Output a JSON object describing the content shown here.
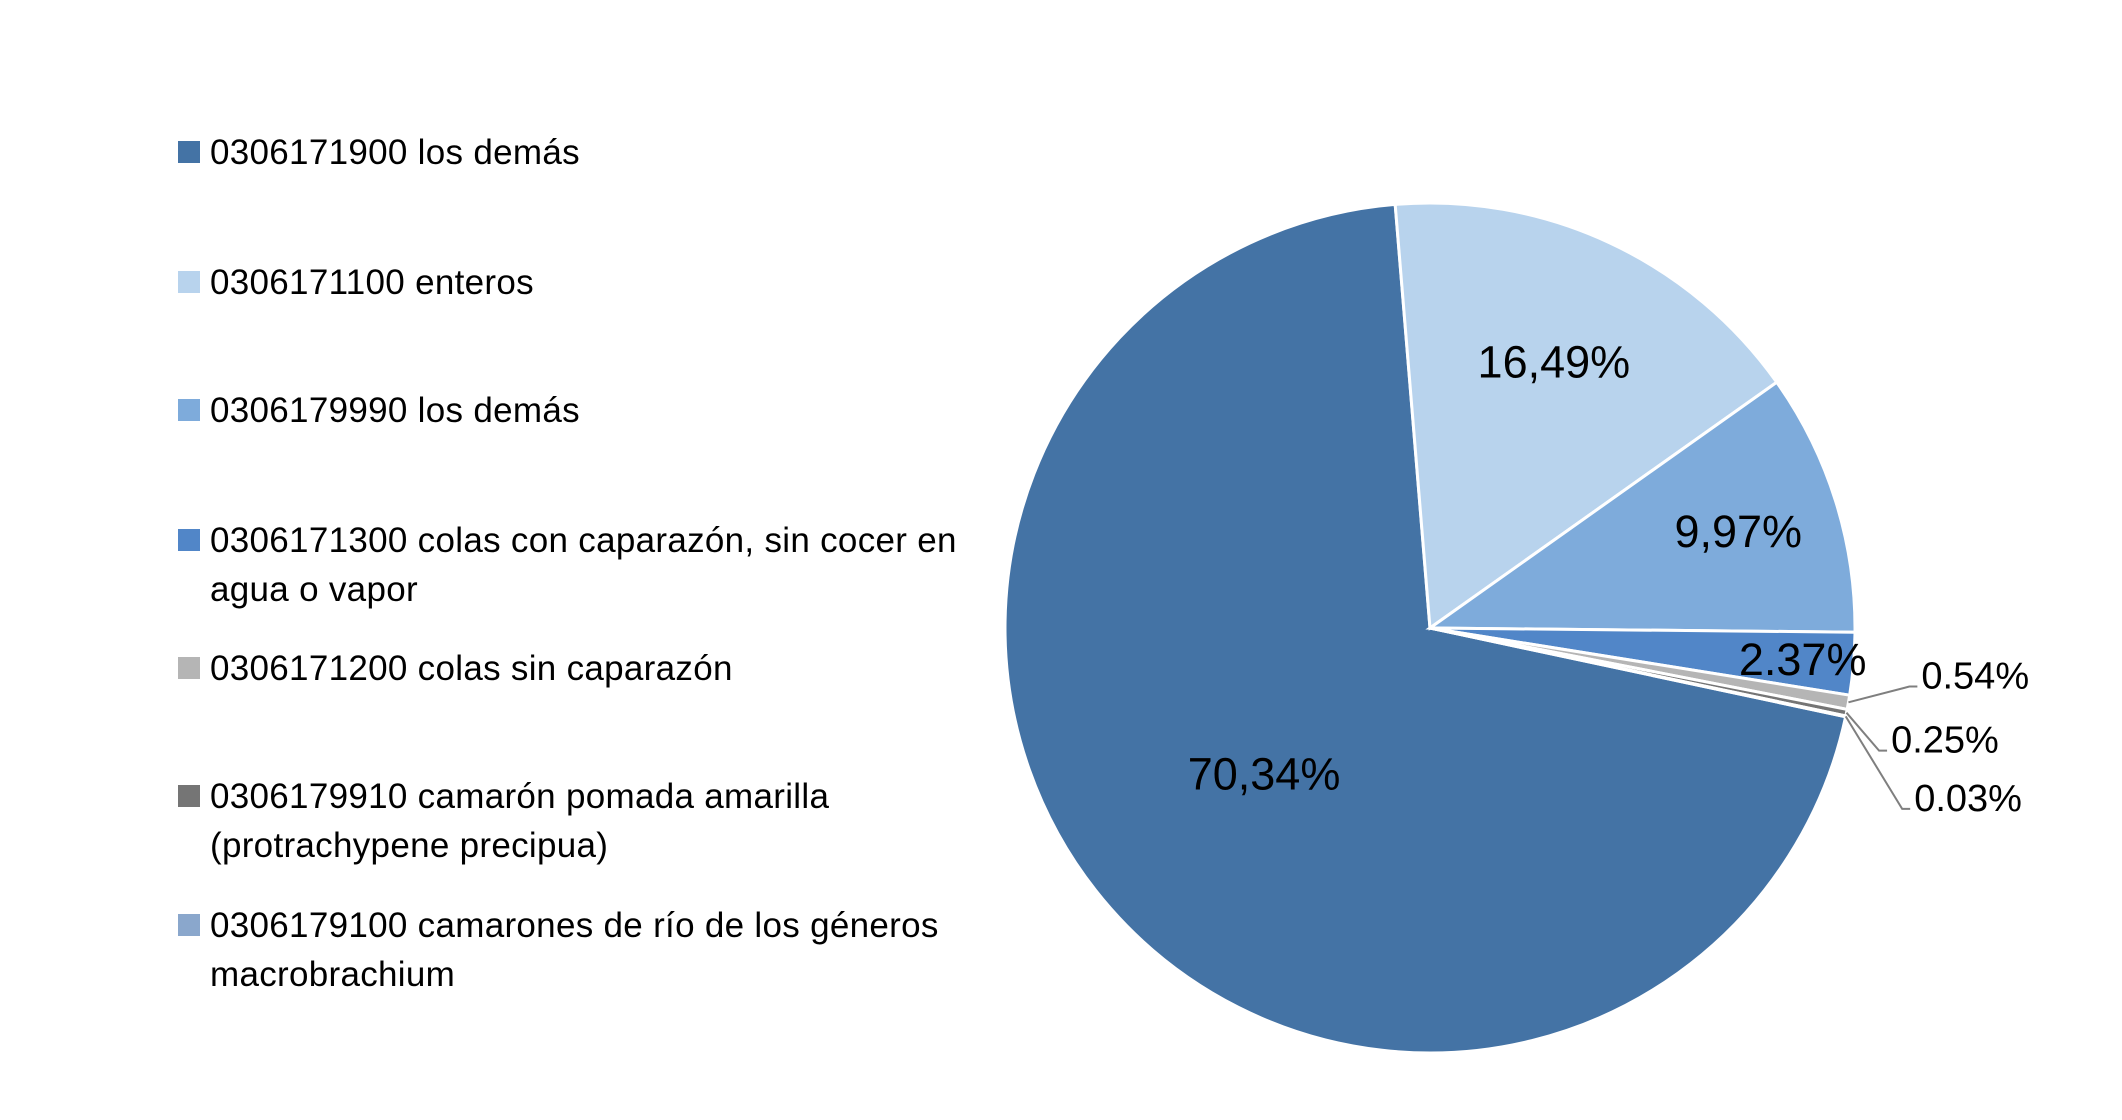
{
  "chart_data": {
    "type": "pie",
    "legend_position": "left",
    "slices": [
      {
        "label": "0306171900 los demás",
        "value": 70.34,
        "display": "70,34%",
        "color": "#4473A5"
      },
      {
        "label": "0306171100 enteros",
        "value": 16.49,
        "display": "16,49%",
        "color": "#B8D3ED"
      },
      {
        "label": "0306179990 los demás",
        "value": 9.97,
        "display": "9,97%",
        "color": "#7EABDB"
      },
      {
        "label": "0306171300 colas con caparazón, sin cocer en agua o vapor",
        "value": 2.37,
        "display": "2.37%",
        "color": "#5186C8"
      },
      {
        "label": "0306171200 colas sin caparazón",
        "value": 0.54,
        "display": "0.54%",
        "color": "#B5B5B5"
      },
      {
        "label": "0306179910 camarón pomada amarilla (protrachypene precipua)",
        "value": 0.25,
        "display": "0.25%",
        "color": "#757575"
      },
      {
        "label": "0306179100 camarones de río de los géneros macrobrachium",
        "value": 0.03,
        "display": "0.03%",
        "color": "#8AA7CC"
      }
    ]
  },
  "legend": {
    "items": [
      {
        "line1": "0306171900 los demás",
        "line2": "",
        "color": "#4473A5"
      },
      {
        "line1": "0306171100 enteros",
        "line2": "",
        "color": "#B8D3ED"
      },
      {
        "line1": "0306179990 los demás",
        "line2": "",
        "color": "#7EABDB"
      },
      {
        "line1": "0306171300 colas con caparazón, sin cocer en",
        "line2": "agua o vapor",
        "color": "#5186C8"
      },
      {
        "line1": "0306171200 colas sin caparazón",
        "line2": "",
        "color": "#B5B5B5"
      },
      {
        "line1": "0306179910 camarón pomada amarilla",
        "line2": "(protrachypene precipua)",
        "color": "#757575"
      },
      {
        "line1": "0306179100 camarones de río de los géneros",
        "line2": "macrobrachium",
        "color": "#8AA7CC"
      }
    ]
  }
}
